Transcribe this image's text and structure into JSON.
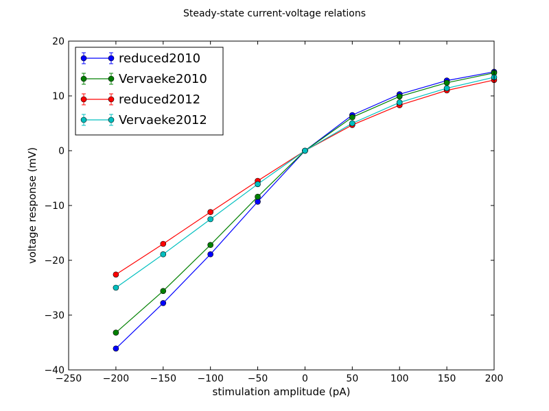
{
  "chart_data": {
    "type": "line",
    "title": "Steady-state current-voltage relations",
    "xlabel": "stimulation amplitude (pA)",
    "ylabel": "voltage response (mV)",
    "xlim": [
      -250,
      200
    ],
    "ylim": [
      -40,
      20
    ],
    "xticks": [
      -250,
      -200,
      -150,
      -100,
      -50,
      0,
      50,
      100,
      150,
      200
    ],
    "yticks": [
      -40,
      -30,
      -20,
      -10,
      0,
      10,
      20
    ],
    "xtick_labels": [
      "−250",
      "−200",
      "−150",
      "−100",
      "−50",
      "0",
      "50",
      "100",
      "150",
      "200"
    ],
    "ytick_labels": [
      "−40",
      "−30",
      "−20",
      "−10",
      "0",
      "10",
      "20"
    ],
    "grid": false,
    "legend_position": "top-left",
    "x": [
      -200,
      -150,
      -100,
      -50,
      0,
      50,
      100,
      150,
      200
    ],
    "series": [
      {
        "name": "reduced2010",
        "color": "#0000ff",
        "values": [
          -36.1,
          -27.8,
          -18.9,
          -9.3,
          0,
          6.5,
          10.3,
          12.8,
          14.4
        ]
      },
      {
        "name": "Vervaeke2010",
        "color": "#008000",
        "values": [
          -33.2,
          -25.6,
          -17.2,
          -8.4,
          0,
          6.1,
          9.9,
          12.4,
          14.2
        ]
      },
      {
        "name": "reduced2012",
        "color": "#ff0000",
        "values": [
          -22.6,
          -17.0,
          -11.2,
          -5.5,
          0,
          4.7,
          8.3,
          11.0,
          12.9
        ]
      },
      {
        "name": "Vervaeke2012",
        "color": "#00bfbf",
        "values": [
          -25.0,
          -18.9,
          -12.5,
          -6.1,
          0,
          5.0,
          8.8,
          11.4,
          13.4
        ]
      }
    ]
  }
}
